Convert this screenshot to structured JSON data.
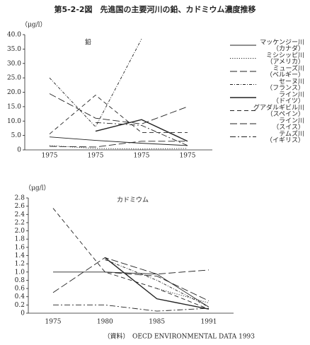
{
  "title": "第5-2-2図　先進国の主要河川の鉛、カドミウム濃度推移",
  "source": "（資料）　OECD ENVIRONMENTAL DATA 1993",
  "chart_data": [
    {
      "type": "line",
      "ylabel": "（μg/l）",
      "panel_label": "鉛",
      "categories": [
        "1975",
        "1975",
        "1975",
        "1975"
      ],
      "ylim": [
        0,
        40
      ],
      "yticks": [
        0,
        {
          "value": 5,
          "label": "5.0"
        },
        {
          "value": 10,
          "label": "10.0"
        },
        {
          "value": 15,
          "label": "15.0"
        },
        {
          "value": 20,
          "label": "20.0"
        },
        {
          "value": 25,
          "label": "25.0"
        },
        {
          "value": 30,
          "label": "30.0"
        },
        {
          "value": 35,
          "label": "35.0"
        },
        {
          "value": 40,
          "label": "40.0"
        }
      ],
      "color": "#222",
      "series": [
        {
          "name": "マッケンジー川",
          "country": "（カナダ）",
          "dash": "solid",
          "values": [
            4.5,
            3.3,
            2.3,
            1.5
          ]
        },
        {
          "name": "ミシシッピ川",
          "country": "（アメリカ）",
          "dash": "dotted",
          "values": [
            1.5,
            0.5,
            0.3,
            0.5
          ]
        },
        {
          "name": "ミューズ川",
          "country": "（ベルギー）",
          "dash": "longdash",
          "values": [
            1.2,
            1,
            3,
            3
          ]
        },
        {
          "name": "セーヌ川",
          "country": "（フランス）",
          "dash": "finedashdot",
          "values": [
            25,
            8,
            38.5,
            null
          ]
        },
        {
          "name": "ライン川",
          "country": "（ドイツ）",
          "dash": "solid-bold",
          "values": [
            null,
            6.5,
            10.5,
            3
          ]
        },
        {
          "name": "グアダルギビル川",
          "country": "（スペイン）",
          "dash": "dashed",
          "values": [
            5.5,
            19,
            6,
            6
          ]
        },
        {
          "name": "ライン川",
          "country": "（スイス）",
          "dash": "longdash",
          "values": [
            19.5,
            11,
            9,
            15
          ]
        },
        {
          "name": "テムズ川",
          "country": "（イギリス）",
          "dash": "dashdot",
          "values": [
            null,
            9.5,
            8.5,
            1.5
          ]
        }
      ]
    },
    {
      "type": "line",
      "ylabel": "（μg/l）",
      "panel_label": "カドミウム",
      "categories": [
        "1975",
        "1980",
        "1985",
        "1991"
      ],
      "ylim": [
        0,
        2.8
      ],
      "yticks": [
        0,
        0.2,
        0.4,
        0.6,
        0.8,
        {
          "value": 1,
          "label": "1.0"
        },
        1.2,
        1.4,
        1.6,
        1.8,
        {
          "value": 2,
          "label": "2.0"
        },
        2.2,
        2.4,
        2.6,
        2.8
      ],
      "color": "#222",
      "series": [
        {
          "dash": "solid",
          "values": [
            1.0,
            1.0,
            0.95,
            0.15
          ]
        },
        {
          "dash": "dotted",
          "values": [
            null,
            null,
            0.6,
            0.25
          ]
        },
        {
          "dash": "longdash",
          "values": [
            0.5,
            1.35,
            0.95,
            1.05
          ]
        },
        {
          "dash": "finedashdot",
          "values": [
            null,
            1.3,
            0.8,
            0.15
          ]
        },
        {
          "dash": "solid-bold",
          "values": [
            null,
            1.35,
            0.35,
            0.1
          ]
        },
        {
          "dash": "dashed",
          "values": [
            2.55,
            1.0,
            0.6,
            0.1
          ]
        },
        {
          "dash": "longdash",
          "values": [
            null,
            1.0,
            0.9,
            0.3
          ]
        },
        {
          "dash": "dashdot",
          "values": [
            0.2,
            0.2,
            0.05,
            0.12
          ]
        }
      ]
    }
  ]
}
